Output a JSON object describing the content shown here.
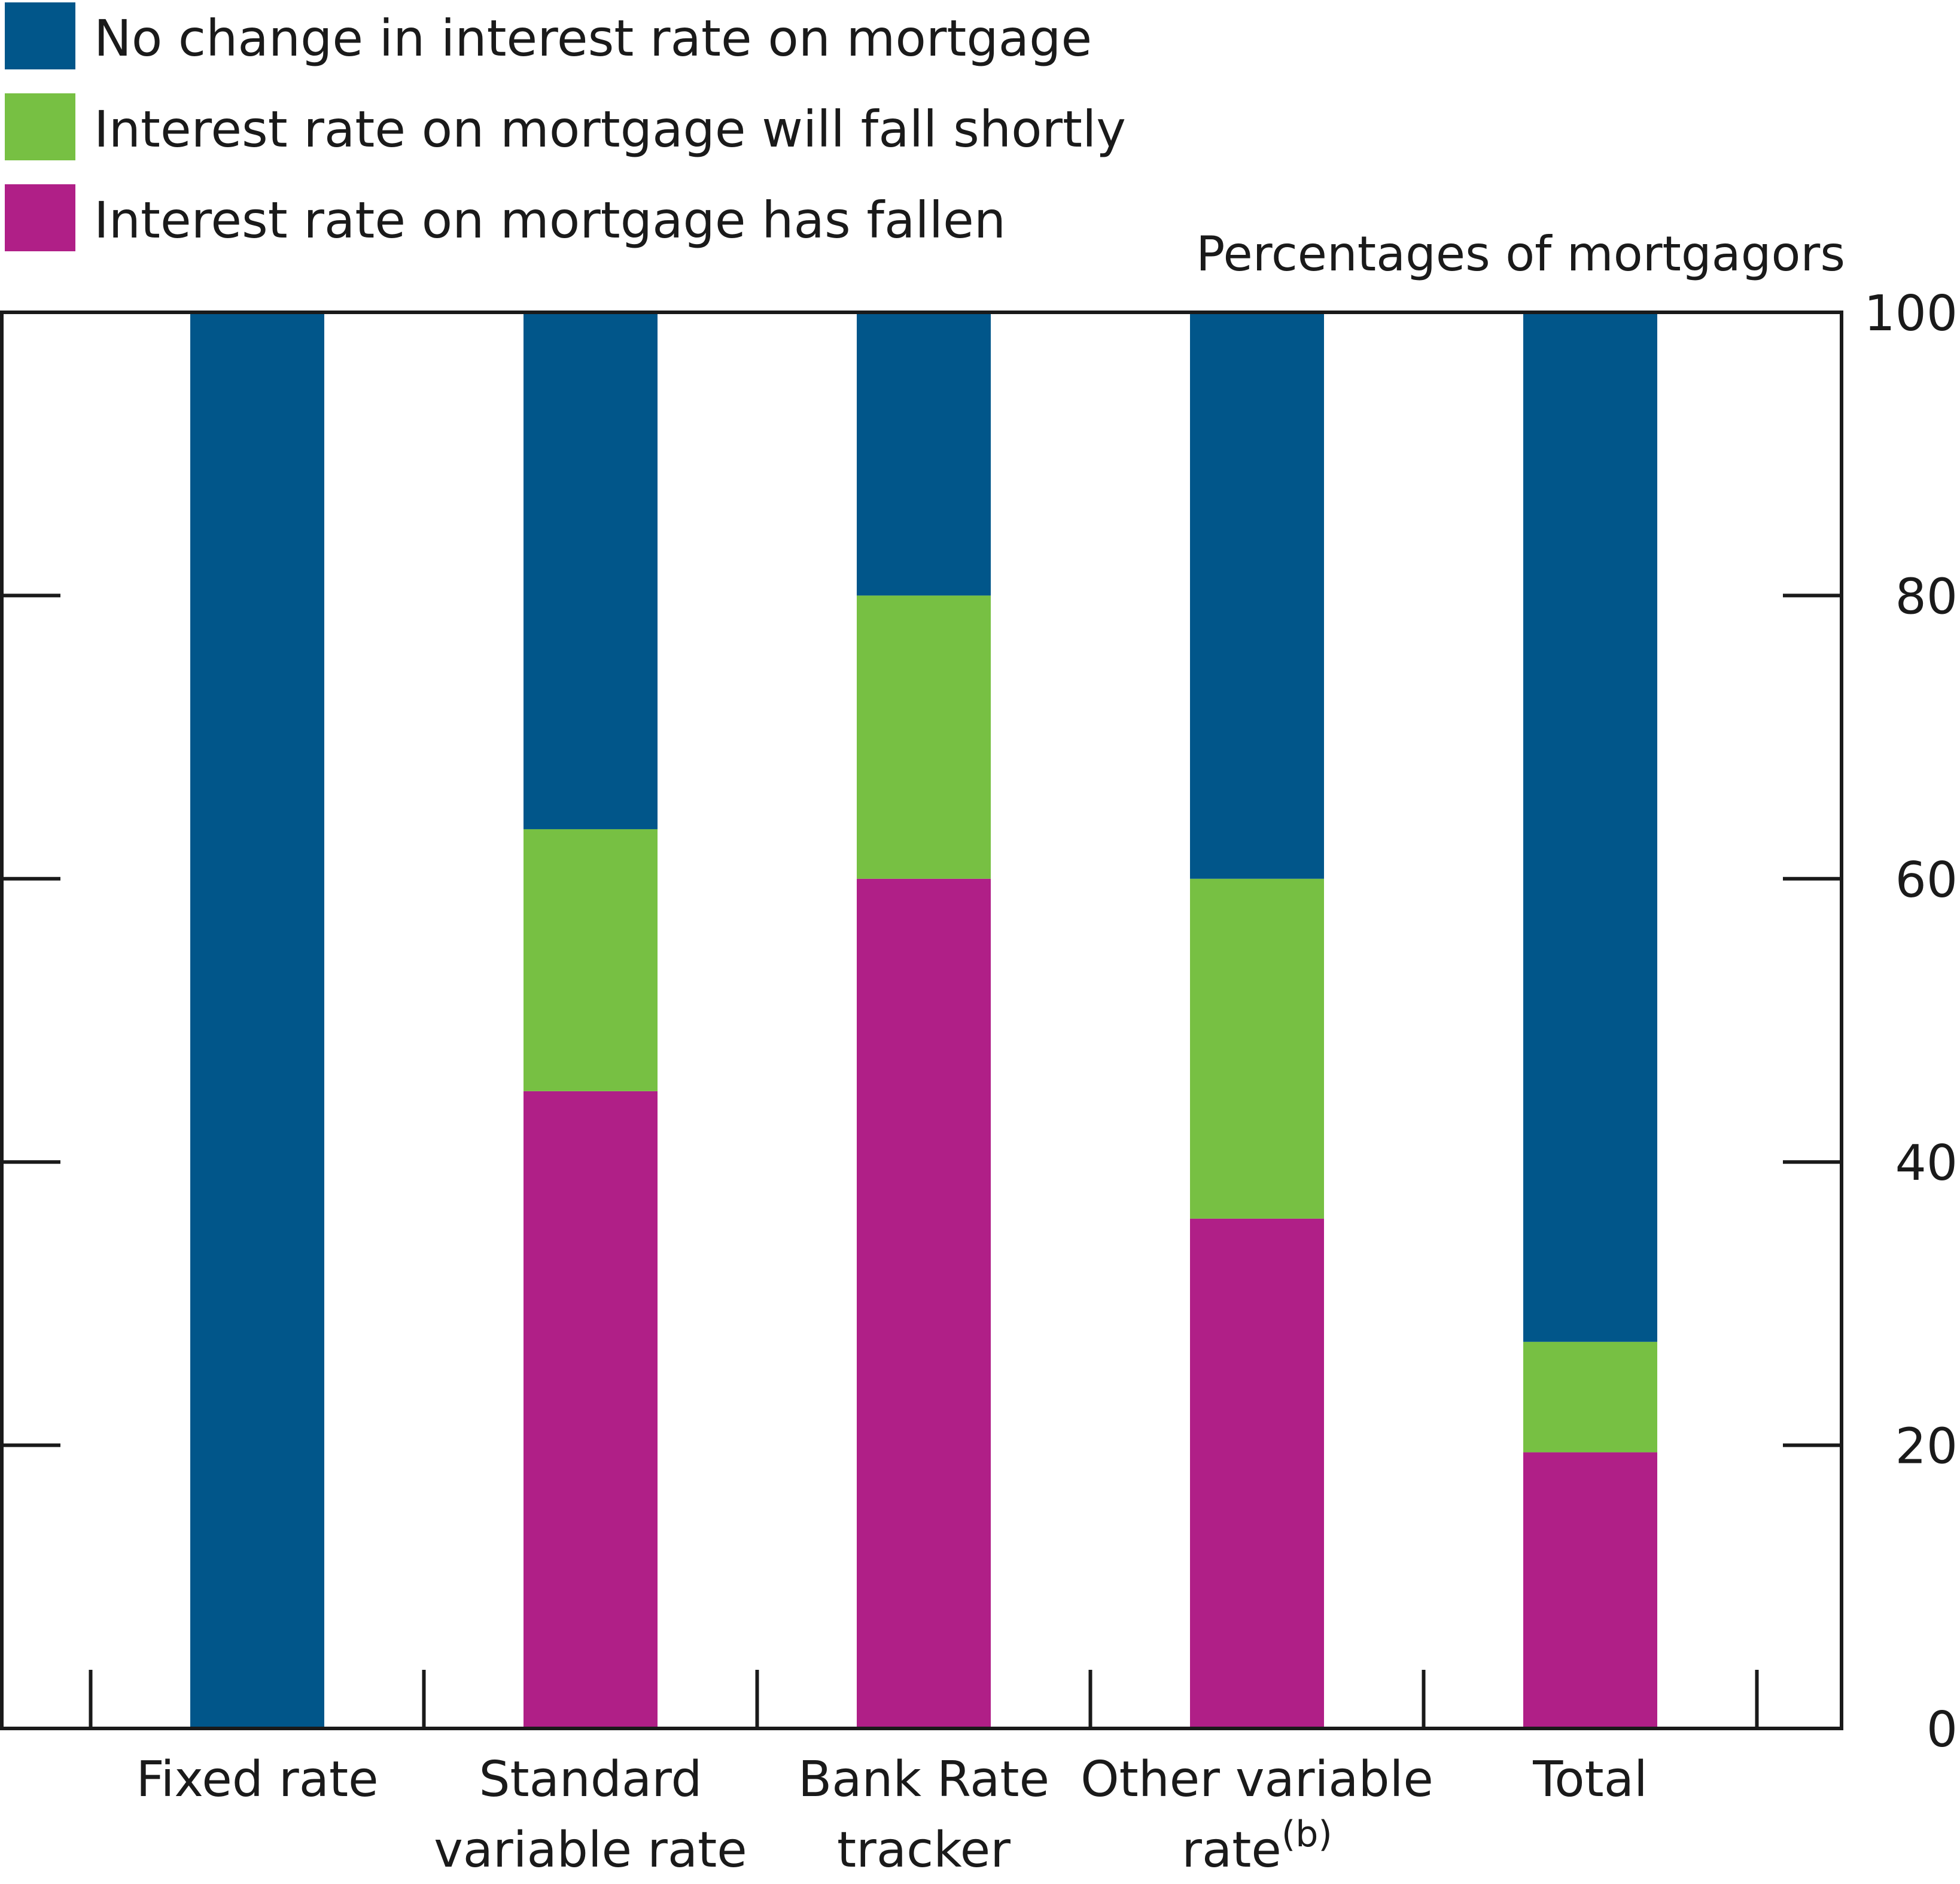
{
  "chart_data": {
    "type": "bar",
    "stacked": true,
    "units_label": "Percentages of mortgagors",
    "categories": [
      [
        "Fixed rate"
      ],
      [
        "Standard",
        "variable rate"
      ],
      [
        "Bank Rate",
        "tracker"
      ],
      [
        "Other variable",
        "rate"
      ],
      [
        "Total"
      ]
    ],
    "category_footnotes": [
      "",
      "",
      "",
      "(b)",
      ""
    ],
    "series": [
      {
        "name": "Interest rate on mortgage has fallen",
        "color": "#B01F87",
        "values": [
          0,
          45,
          60,
          36,
          19.5
        ]
      },
      {
        "name": "Interest rate on mortgage will fall shortly",
        "color": "#77C043",
        "values": [
          0,
          18.5,
          20,
          24,
          7.8
        ]
      },
      {
        "name": "No change in interest rate on mortgage",
        "color": "#01568A",
        "values": [
          100,
          36.5,
          20,
          40,
          72.7
        ]
      }
    ],
    "legend_order": [
      2,
      1,
      0
    ],
    "ylim": [
      0,
      100
    ],
    "yticks": [
      0,
      20,
      40,
      60,
      80,
      100
    ],
    "y_axis_side": "right",
    "legend_position": "top-left",
    "grid": false
  }
}
